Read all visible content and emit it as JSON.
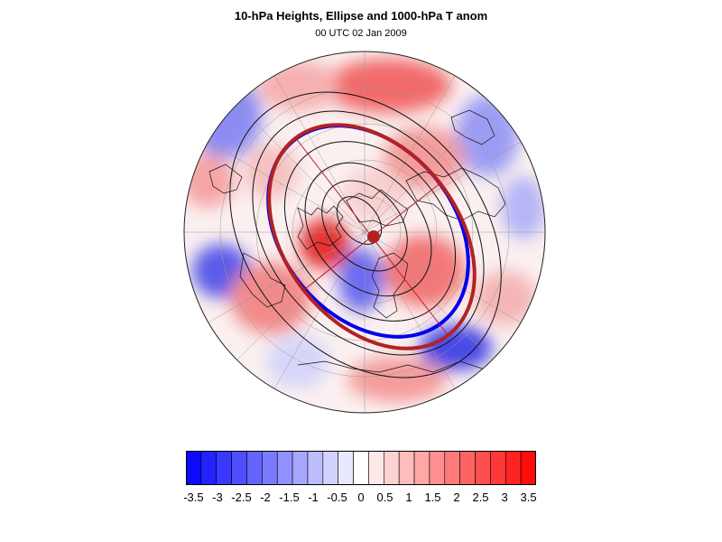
{
  "header": {
    "title": "10-hPa Heights, Ellipse and 1000-hPa T anom",
    "subtitle": "00 UTC 02 Jan 2009"
  },
  "map": {
    "projection": "north-polar-stereographic",
    "field": "1000-hPa temperature anomaly",
    "contours": "10-hPa geopotential height",
    "ellipse_color": "#b22222",
    "edge_contour_color": "#0000ee"
  },
  "colorbar": {
    "colors": [
      "#0b0bff",
      "#2222ff",
      "#3838ff",
      "#4e4eff",
      "#6464ff",
      "#7a7aff",
      "#9090ff",
      "#a6a6ff",
      "#bcbcff",
      "#d2d2ff",
      "#e8e8ff",
      "#ffffff",
      "#ffe8e8",
      "#ffd2d2",
      "#ffbcbc",
      "#ffa6a6",
      "#ff9090",
      "#ff7a7a",
      "#ff6464",
      "#ff4e4e",
      "#ff3838",
      "#ff2222",
      "#ff0b0b"
    ],
    "tick_labels": [
      "-3.5",
      "-3",
      "-2.5",
      "-2",
      "-1.5",
      "-1",
      "-0.5",
      "0",
      "0.5",
      "1",
      "1.5",
      "2",
      "2.5",
      "3",
      "3.5"
    ]
  }
}
